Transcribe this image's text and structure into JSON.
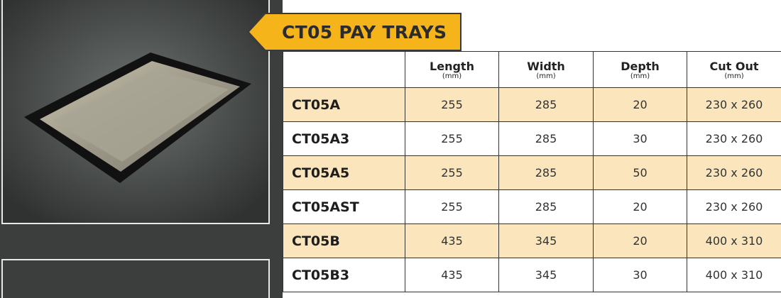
{
  "header": {
    "title": "CT05 PAY TRAYS"
  },
  "table": {
    "columns": [
      {
        "label": "Length",
        "unit": "(mm)"
      },
      {
        "label": "Width",
        "unit": "(mm)"
      },
      {
        "label": "Depth",
        "unit": "(mm)"
      },
      {
        "label": "Cut Out",
        "unit": "(mm)"
      }
    ],
    "rows": [
      [
        "CT05A",
        255,
        285,
        20,
        "230 x 260"
      ],
      [
        "CT05A3",
        255,
        285,
        30,
        "230 x 260"
      ],
      [
        "CT05A5",
        255,
        285,
        50,
        "230 x 260"
      ],
      [
        "CT05AST",
        255,
        285,
        20,
        "230 x 260"
      ],
      [
        "CT05B",
        435,
        345,
        20,
        "400 x 310"
      ],
      [
        "CT05B3",
        435,
        345,
        30,
        "400 x 310"
      ]
    ]
  }
}
